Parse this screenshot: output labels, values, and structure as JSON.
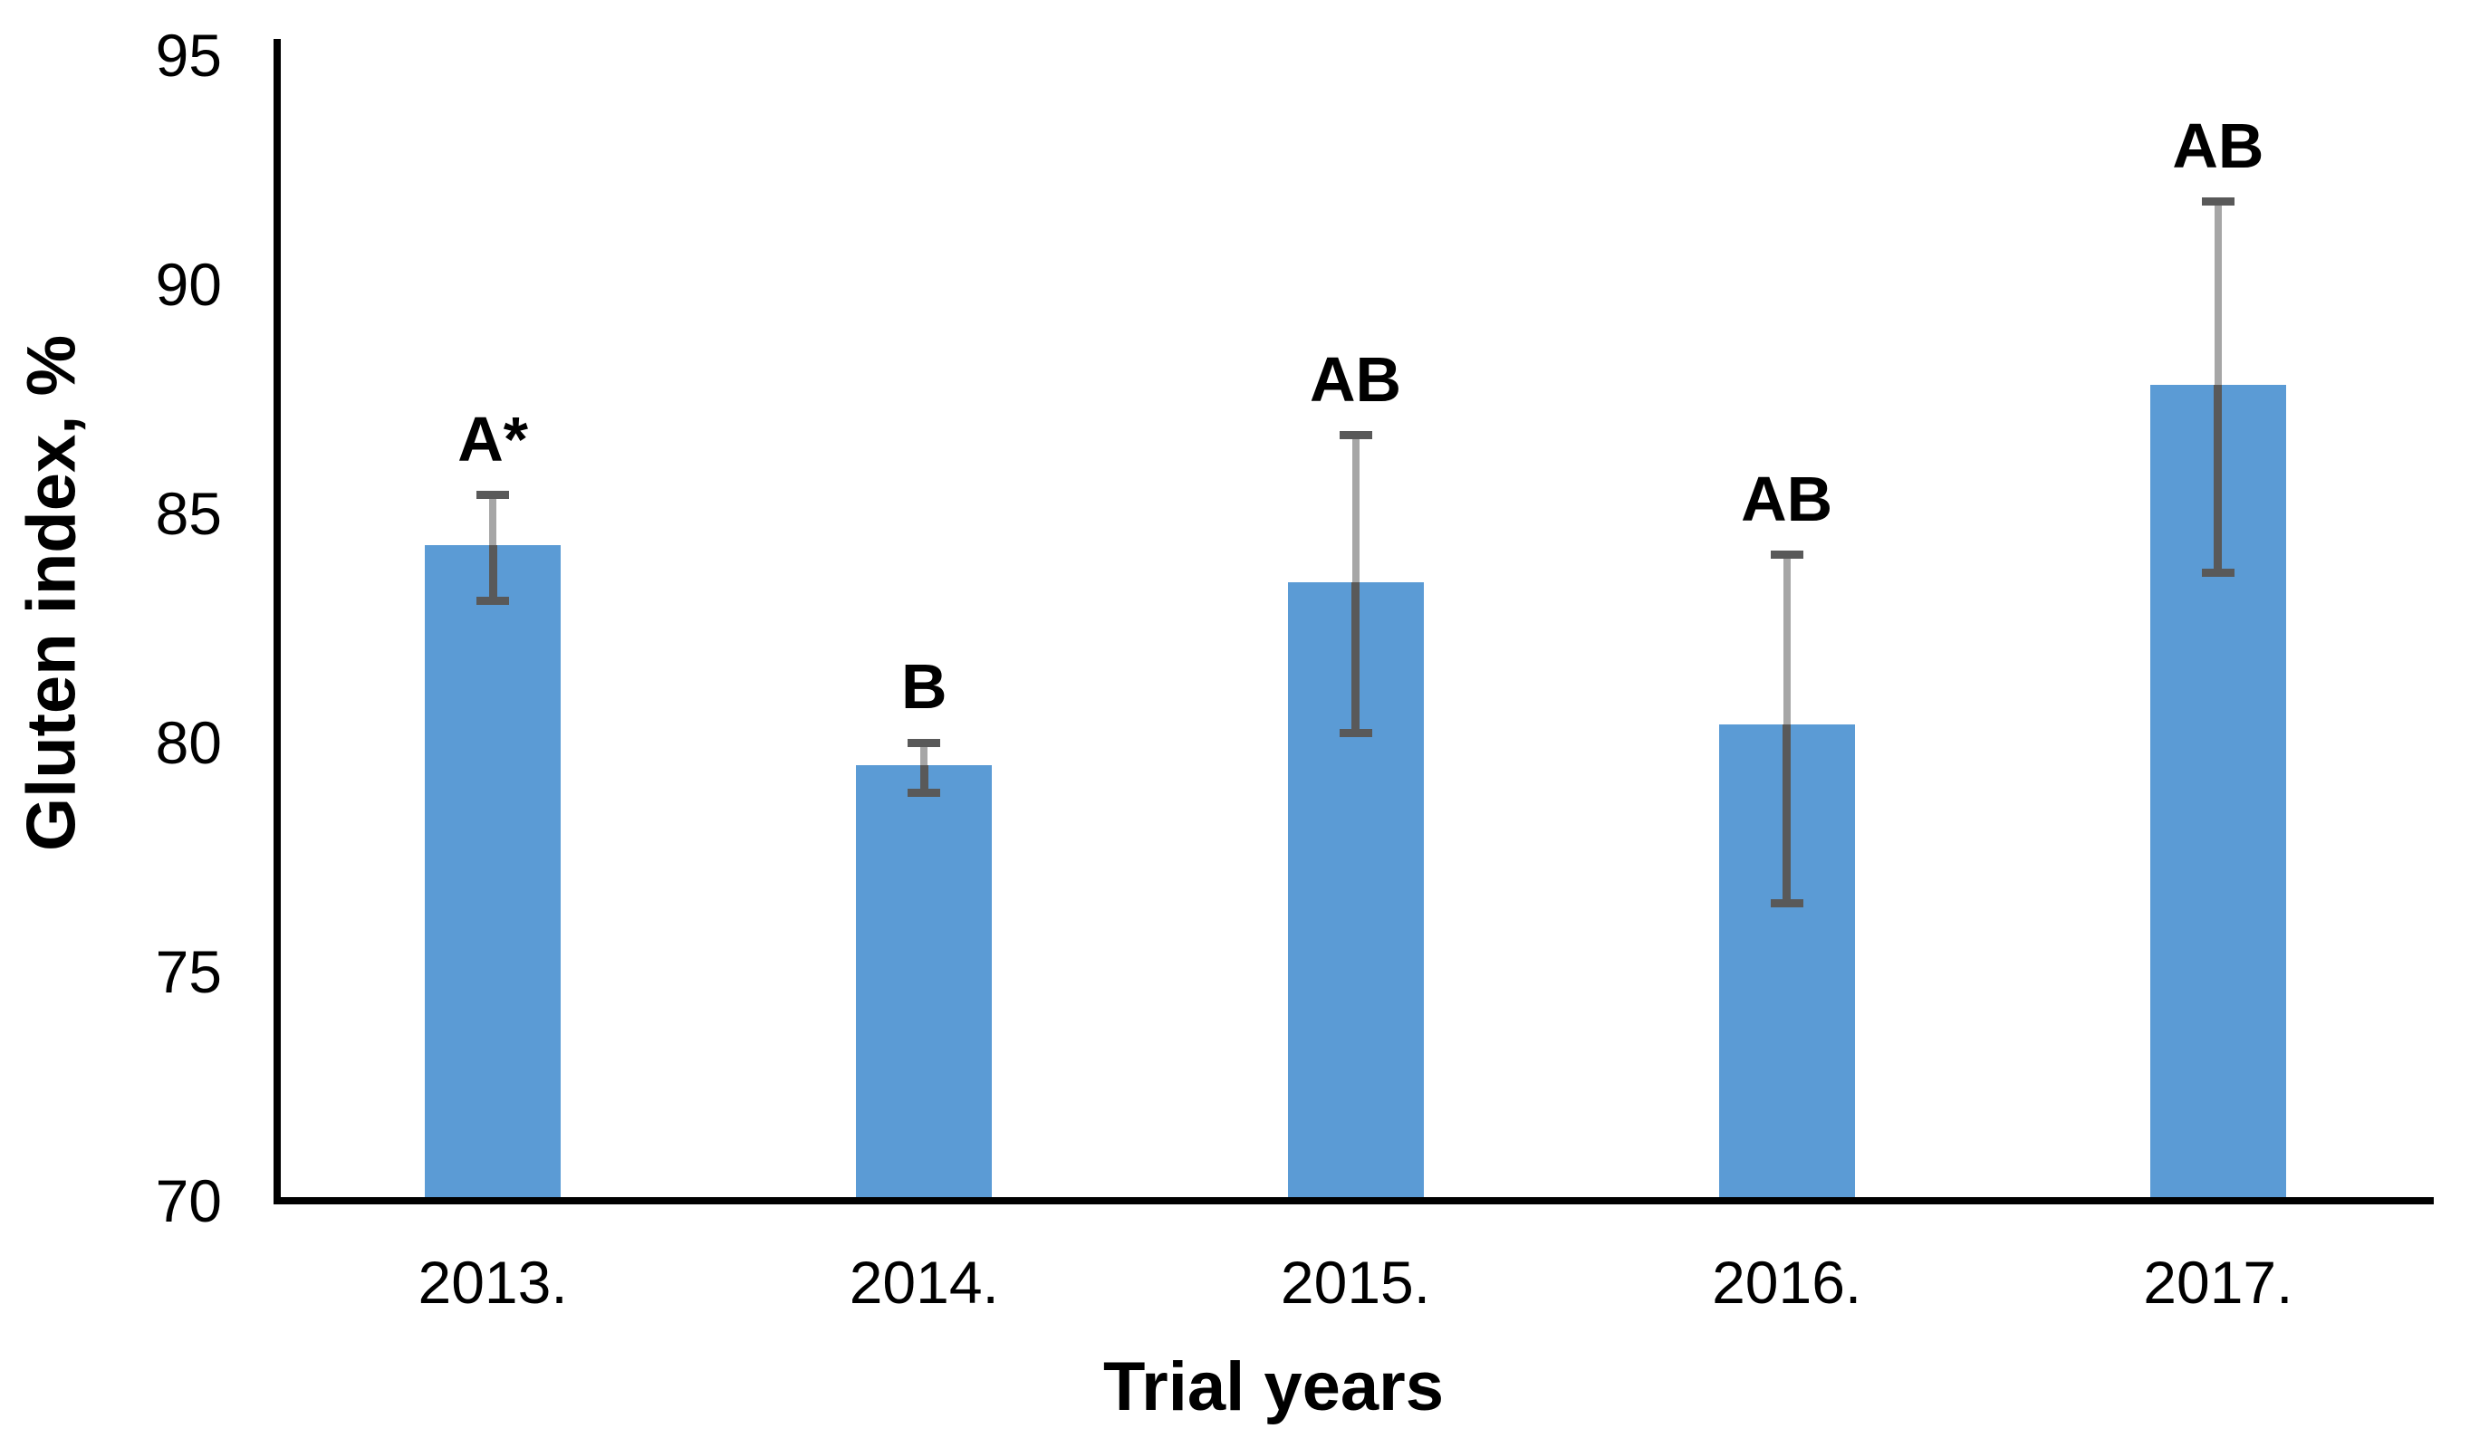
{
  "chart_data": {
    "type": "bar",
    "xlabel": "Trial years",
    "ylabel": "Gluten index, %",
    "categories": [
      "2013.",
      "2014.",
      "2015.",
      "2016.",
      "2017."
    ],
    "values": [
      84.3,
      79.5,
      83.5,
      80.4,
      87.8
    ],
    "error_high": [
      85.4,
      80.0,
      86.7,
      84.1,
      91.8
    ],
    "error_low": [
      83.1,
      78.9,
      80.2,
      76.5,
      83.7
    ],
    "sig_labels": [
      "A*",
      "B",
      "AB",
      "AB",
      "AB"
    ],
    "ylim": [
      70,
      95
    ],
    "yticks": [
      95,
      90,
      85,
      80,
      75,
      70
    ],
    "grid": "off",
    "legend": "none",
    "colors": {
      "bar": "#5B9BD5",
      "error_line_upper": "#A6A6A6",
      "error_line_lower": "#595959",
      "error_cap": "#595959",
      "axis": "#000000",
      "text": "#000000"
    }
  }
}
